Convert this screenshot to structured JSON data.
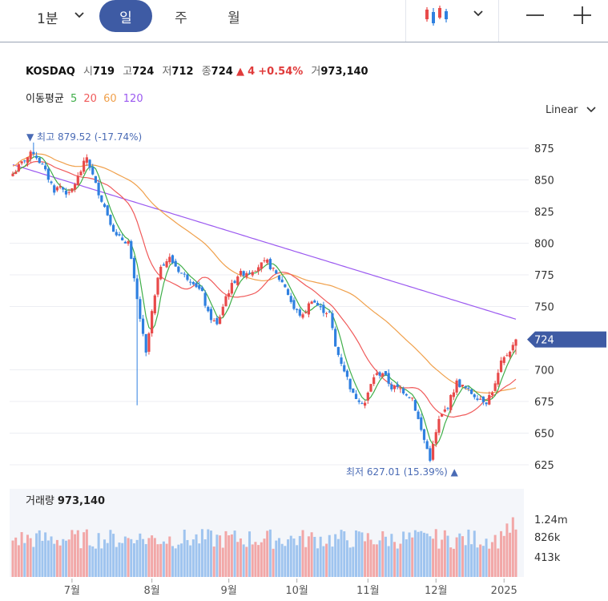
{
  "toolbar": {
    "interval": "1분",
    "tabs": [
      "일",
      "주",
      "월"
    ],
    "active_tab": "일"
  },
  "quote": {
    "symbol": "KOSDAQ",
    "open_label": "시",
    "open": "719",
    "high_label": "고",
    "high": "724",
    "low_label": "저",
    "low": "712",
    "close_label": "종",
    "close": "724",
    "change": "4",
    "change_pct": "+0.54%",
    "volume_label": "거",
    "volume": "973,140"
  },
  "moving_average": {
    "label": "이동평균",
    "periods": [
      {
        "value": "5",
        "color": "#3fae49"
      },
      {
        "value": "20",
        "color": "#f05a5a"
      },
      {
        "value": "60",
        "color": "#f0a04b"
      },
      {
        "value": "120",
        "color": "#9b59f0"
      }
    ]
  },
  "scale_mode": "Linear",
  "volume_panel": {
    "label": "거래량",
    "value": "973,140"
  },
  "chart_data": {
    "type": "candlestick",
    "y_ticks": [
      875,
      850,
      825,
      800,
      775,
      750,
      700,
      675,
      650,
      625
    ],
    "ylim": [
      622,
      885
    ],
    "x_ticks": [
      "7월",
      "8월",
      "9월",
      "10월",
      "11월",
      "12월",
      "2025"
    ],
    "last_price": "724",
    "max_annotation": {
      "prefix": "최고",
      "value": "879.52",
      "pct": "(-17.74%)"
    },
    "min_annotation": {
      "prefix": "최저",
      "value": "627.01",
      "pct": "(15.39%)"
    },
    "volume_ticks": [
      "1.24m",
      "826k",
      "413k"
    ],
    "up_color": "#e84a4a",
    "down_color": "#2f80e0",
    "ma_colors": {
      "ma5": "#3fae49",
      "ma20": "#f05a5a",
      "ma60": "#f0a04b",
      "ma120": "#9b59f0"
    },
    "close_path": [
      [
        0,
        855
      ],
      [
        4,
        866
      ],
      [
        7,
        872
      ],
      [
        10,
        861
      ],
      [
        14,
        842
      ],
      [
        16,
        845
      ],
      [
        19,
        838
      ],
      [
        22,
        852
      ],
      [
        25,
        868
      ],
      [
        28,
        846
      ],
      [
        32,
        823
      ],
      [
        35,
        805
      ],
      [
        39,
        801
      ],
      [
        42,
        755
      ],
      [
        45,
        712
      ],
      [
        47,
        745
      ],
      [
        50,
        783
      ],
      [
        53,
        788
      ],
      [
        57,
        776
      ],
      [
        61,
        770
      ],
      [
        64,
        760
      ],
      [
        66,
        744
      ],
      [
        69,
        735
      ],
      [
        72,
        758
      ],
      [
        76,
        775
      ],
      [
        80,
        778
      ],
      [
        83,
        782
      ],
      [
        86,
        785
      ],
      [
        89,
        775
      ],
      [
        92,
        766
      ],
      [
        95,
        748
      ],
      [
        98,
        742
      ],
      [
        101,
        756
      ],
      [
        104,
        748
      ],
      [
        107,
        745
      ],
      [
        109,
        718
      ],
      [
        112,
        700
      ],
      [
        115,
        680
      ],
      [
        119,
        674
      ],
      [
        122,
        695
      ],
      [
        125,
        698
      ],
      [
        128,
        686
      ],
      [
        131,
        685
      ],
      [
        135,
        678
      ],
      [
        138,
        652
      ],
      [
        141,
        630
      ],
      [
        144,
        660
      ],
      [
        147,
        672
      ],
      [
        150,
        690
      ],
      [
        153,
        685
      ],
      [
        156,
        680
      ],
      [
        160,
        675
      ],
      [
        163,
        688
      ],
      [
        165,
        705
      ],
      [
        168,
        716
      ],
      [
        171,
        724
      ]
    ]
  }
}
